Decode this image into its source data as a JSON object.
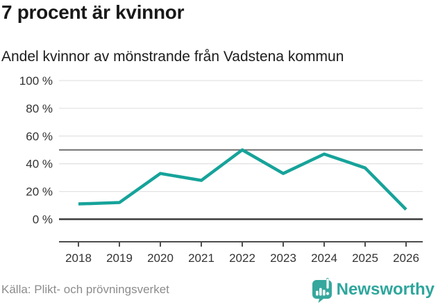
{
  "chart_data": {
    "type": "line",
    "title": "7 procent är kvinnor",
    "subtitle": "Andel kvinnor av mönstrande från Vadstena kommun",
    "x": [
      2018,
      2019,
      2020,
      2021,
      2022,
      2023,
      2024,
      2025,
      2026
    ],
    "series": [
      {
        "name": "Andel kvinnor av mönstrande",
        "values": [
          11,
          12,
          33,
          28,
          50,
          33,
          47,
          37,
          7
        ]
      }
    ],
    "xlabel": "",
    "ylabel": "",
    "ylim": [
      0,
      100
    ],
    "yticks": [
      100,
      80,
      60,
      40,
      20,
      0
    ],
    "ytick_labels": [
      "100 %",
      "80 %",
      "60 %",
      "40 %",
      "20 %",
      "0 %"
    ],
    "reference_line": 50,
    "grid": true,
    "legend": "none",
    "line_color": "#16a39a"
  },
  "footer": {
    "source": "Källa: Plikt- och prövningsverket",
    "brand": "Newsworthy"
  },
  "colors": {
    "line": "#16a39a",
    "grid": "#e3e3e3",
    "reference": "#6f6f6f",
    "baseline": "#3a3a3a",
    "axis": "#4d4d4d",
    "tick_text": "#333333",
    "brand_teal": "#2ea69c",
    "logo_teal": "#35a79d"
  }
}
